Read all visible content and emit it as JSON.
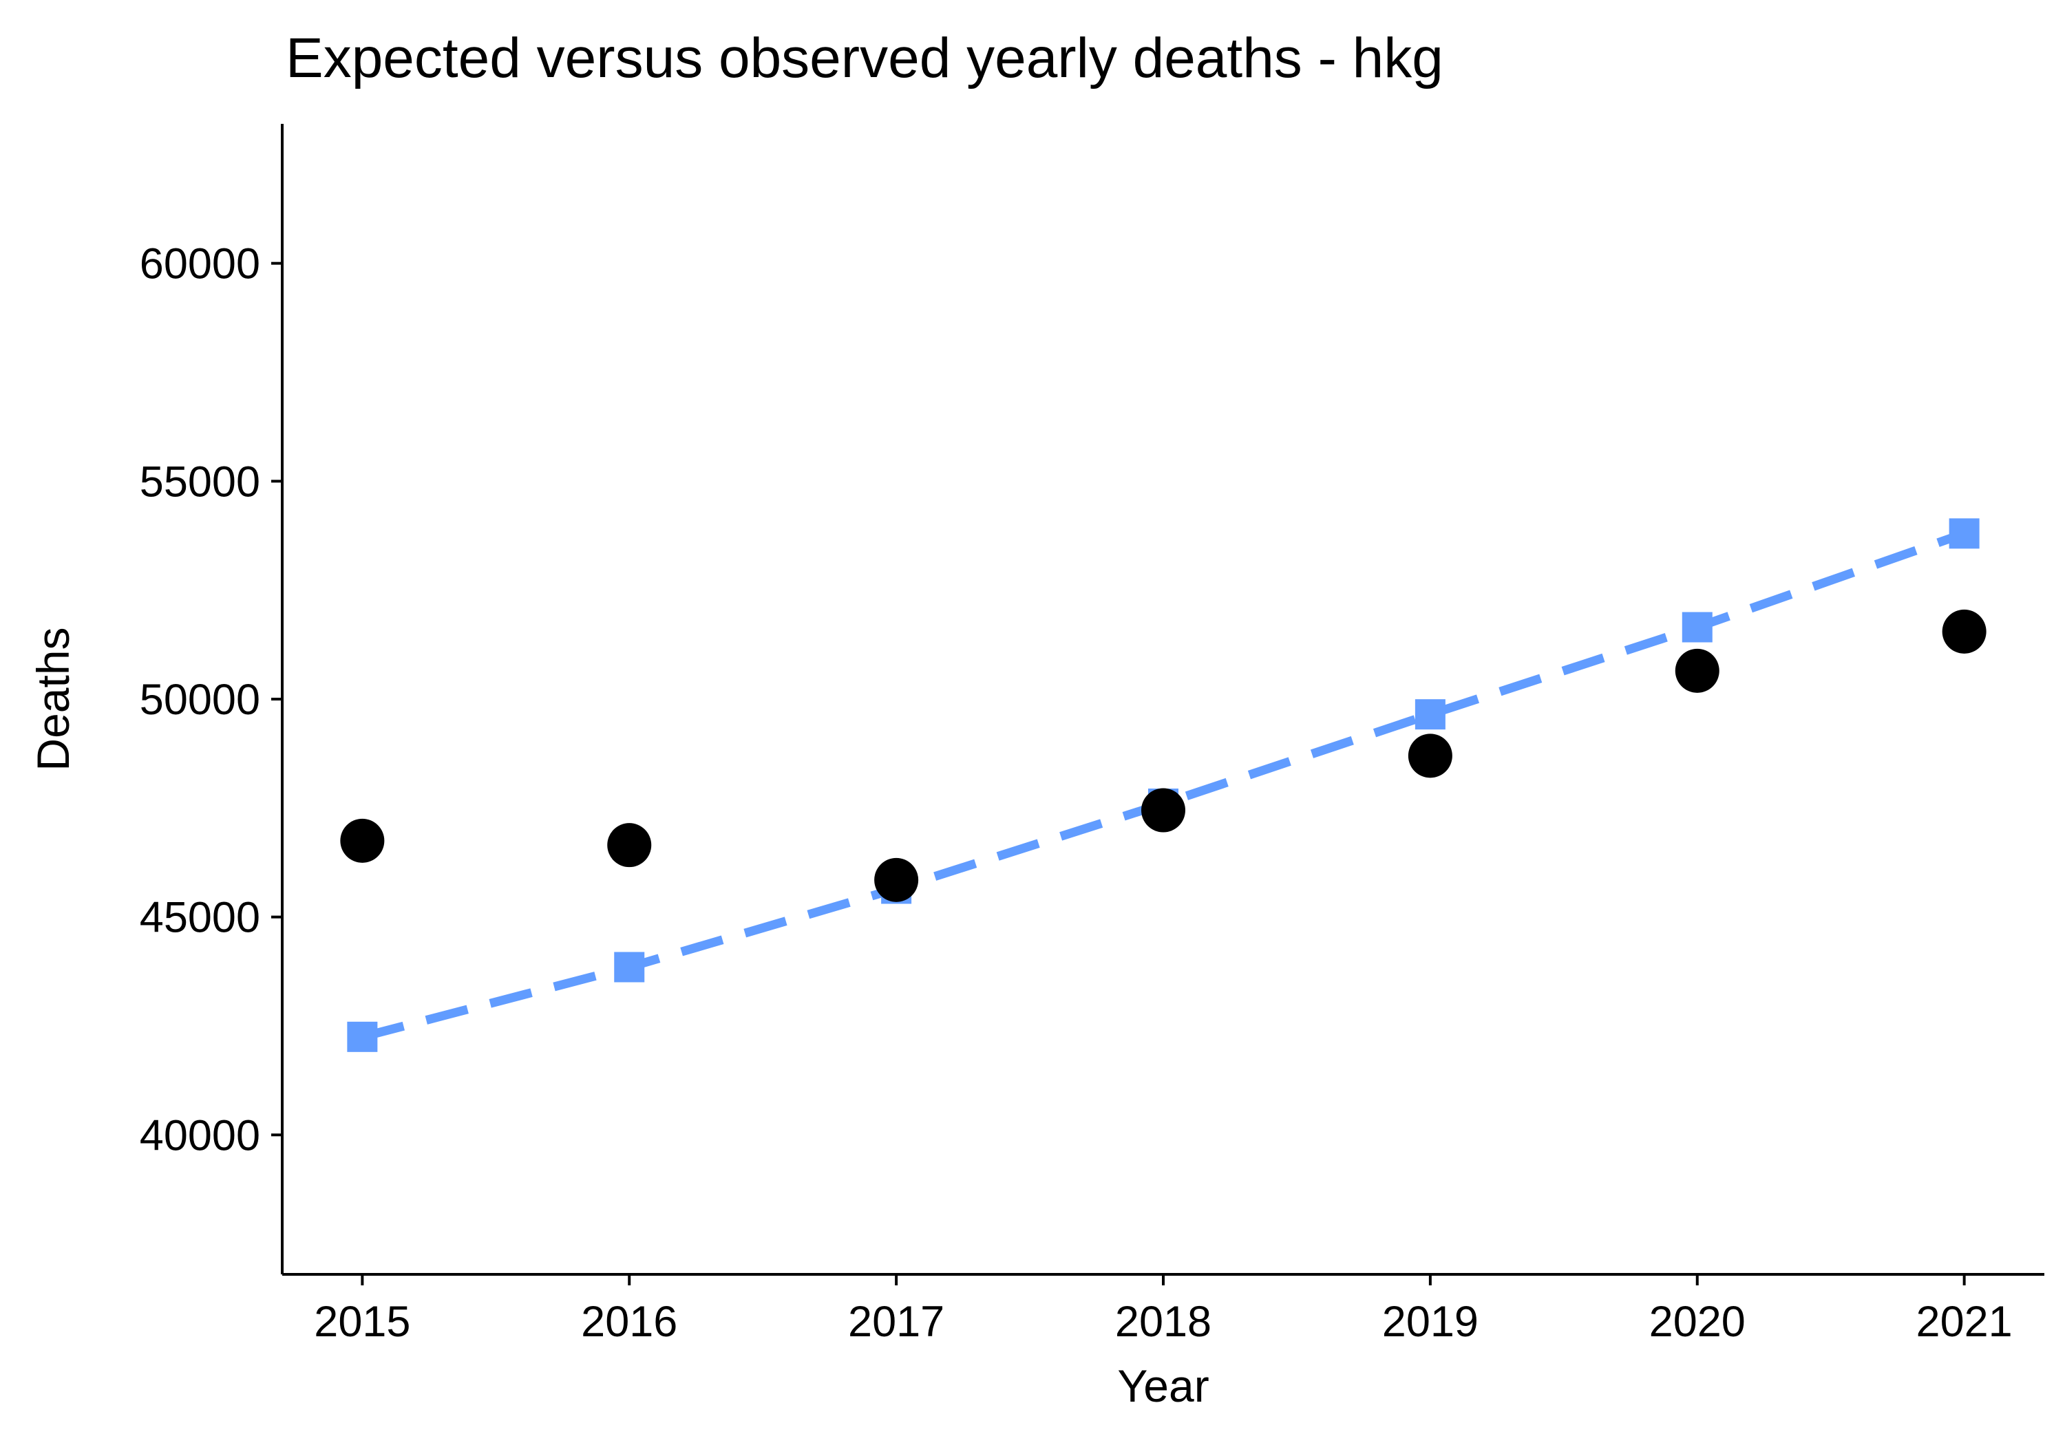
{
  "chart_data": {
    "type": "line",
    "title": "Expected versus observed yearly deaths - hkg",
    "xlabel": "Year",
    "ylabel": "Deaths",
    "xlim": [
      2014.7,
      2021.3
    ],
    "ylim": [
      36800,
      63200
    ],
    "x_ticks": [
      2015,
      2016,
      2017,
      2018,
      2019,
      2020,
      2021
    ],
    "y_ticks": [
      40000,
      45000,
      50000,
      55000,
      60000
    ],
    "x_tick_labels": [
      "2015",
      "2016",
      "2017",
      "2018",
      "2019",
      "2020",
      "2021"
    ],
    "y_tick_labels": [
      "40000",
      "45000",
      "50000",
      "55000",
      "60000"
    ],
    "grid": false,
    "legend": "none",
    "series": [
      {
        "id": "observed",
        "mark": "point",
        "shape": "circle",
        "color": "#000000",
        "x": [
          2015,
          2016,
          2017,
          2018,
          2019,
          2020,
          2021
        ],
        "values": [
          46750,
          46650,
          45850,
          47450,
          48700,
          50650,
          51550
        ]
      },
      {
        "id": "expected",
        "mark": "line+point",
        "shape": "square",
        "line_style": "dashed",
        "color": "#619CFF",
        "x": [
          2015,
          2016,
          2017,
          2018,
          2019,
          2020,
          2021
        ],
        "values": [
          42250,
          43850,
          45650,
          47600,
          49650,
          51650,
          53800
        ]
      }
    ]
  }
}
